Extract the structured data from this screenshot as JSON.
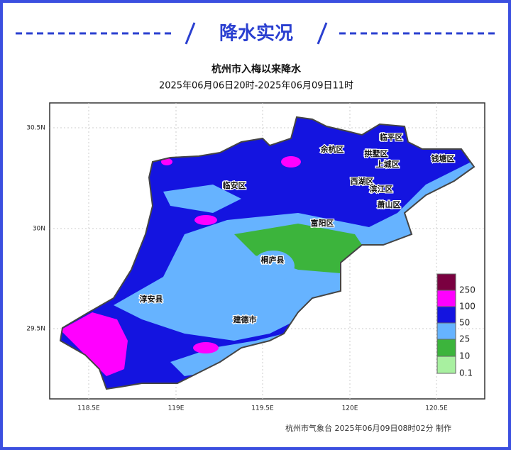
{
  "header": {
    "title": "降水实况"
  },
  "map": {
    "title": "杭州市入梅以来降水",
    "subtitle": "2025年06月06日20时-2025年06月09日11时",
    "lat_ticks": [
      "30.5N",
      "30N",
      "29.5N"
    ],
    "lon_ticks": [
      "118.5E",
      "119E",
      "119.5E",
      "120E",
      "120.5E"
    ],
    "districts": [
      "临平区",
      "余杭区",
      "拱墅区",
      "钱塘区",
      "上城区",
      "临安区",
      "西湖区",
      "滨江区",
      "萧山区",
      "富阳区",
      "桐庐县",
      "淳安县",
      "建德市"
    ],
    "legend": [
      "250",
      "100",
      "50",
      "25",
      "10",
      "0.1"
    ],
    "footer": "杭州市气象台 2025年06月09日08时02分 制作"
  }
}
